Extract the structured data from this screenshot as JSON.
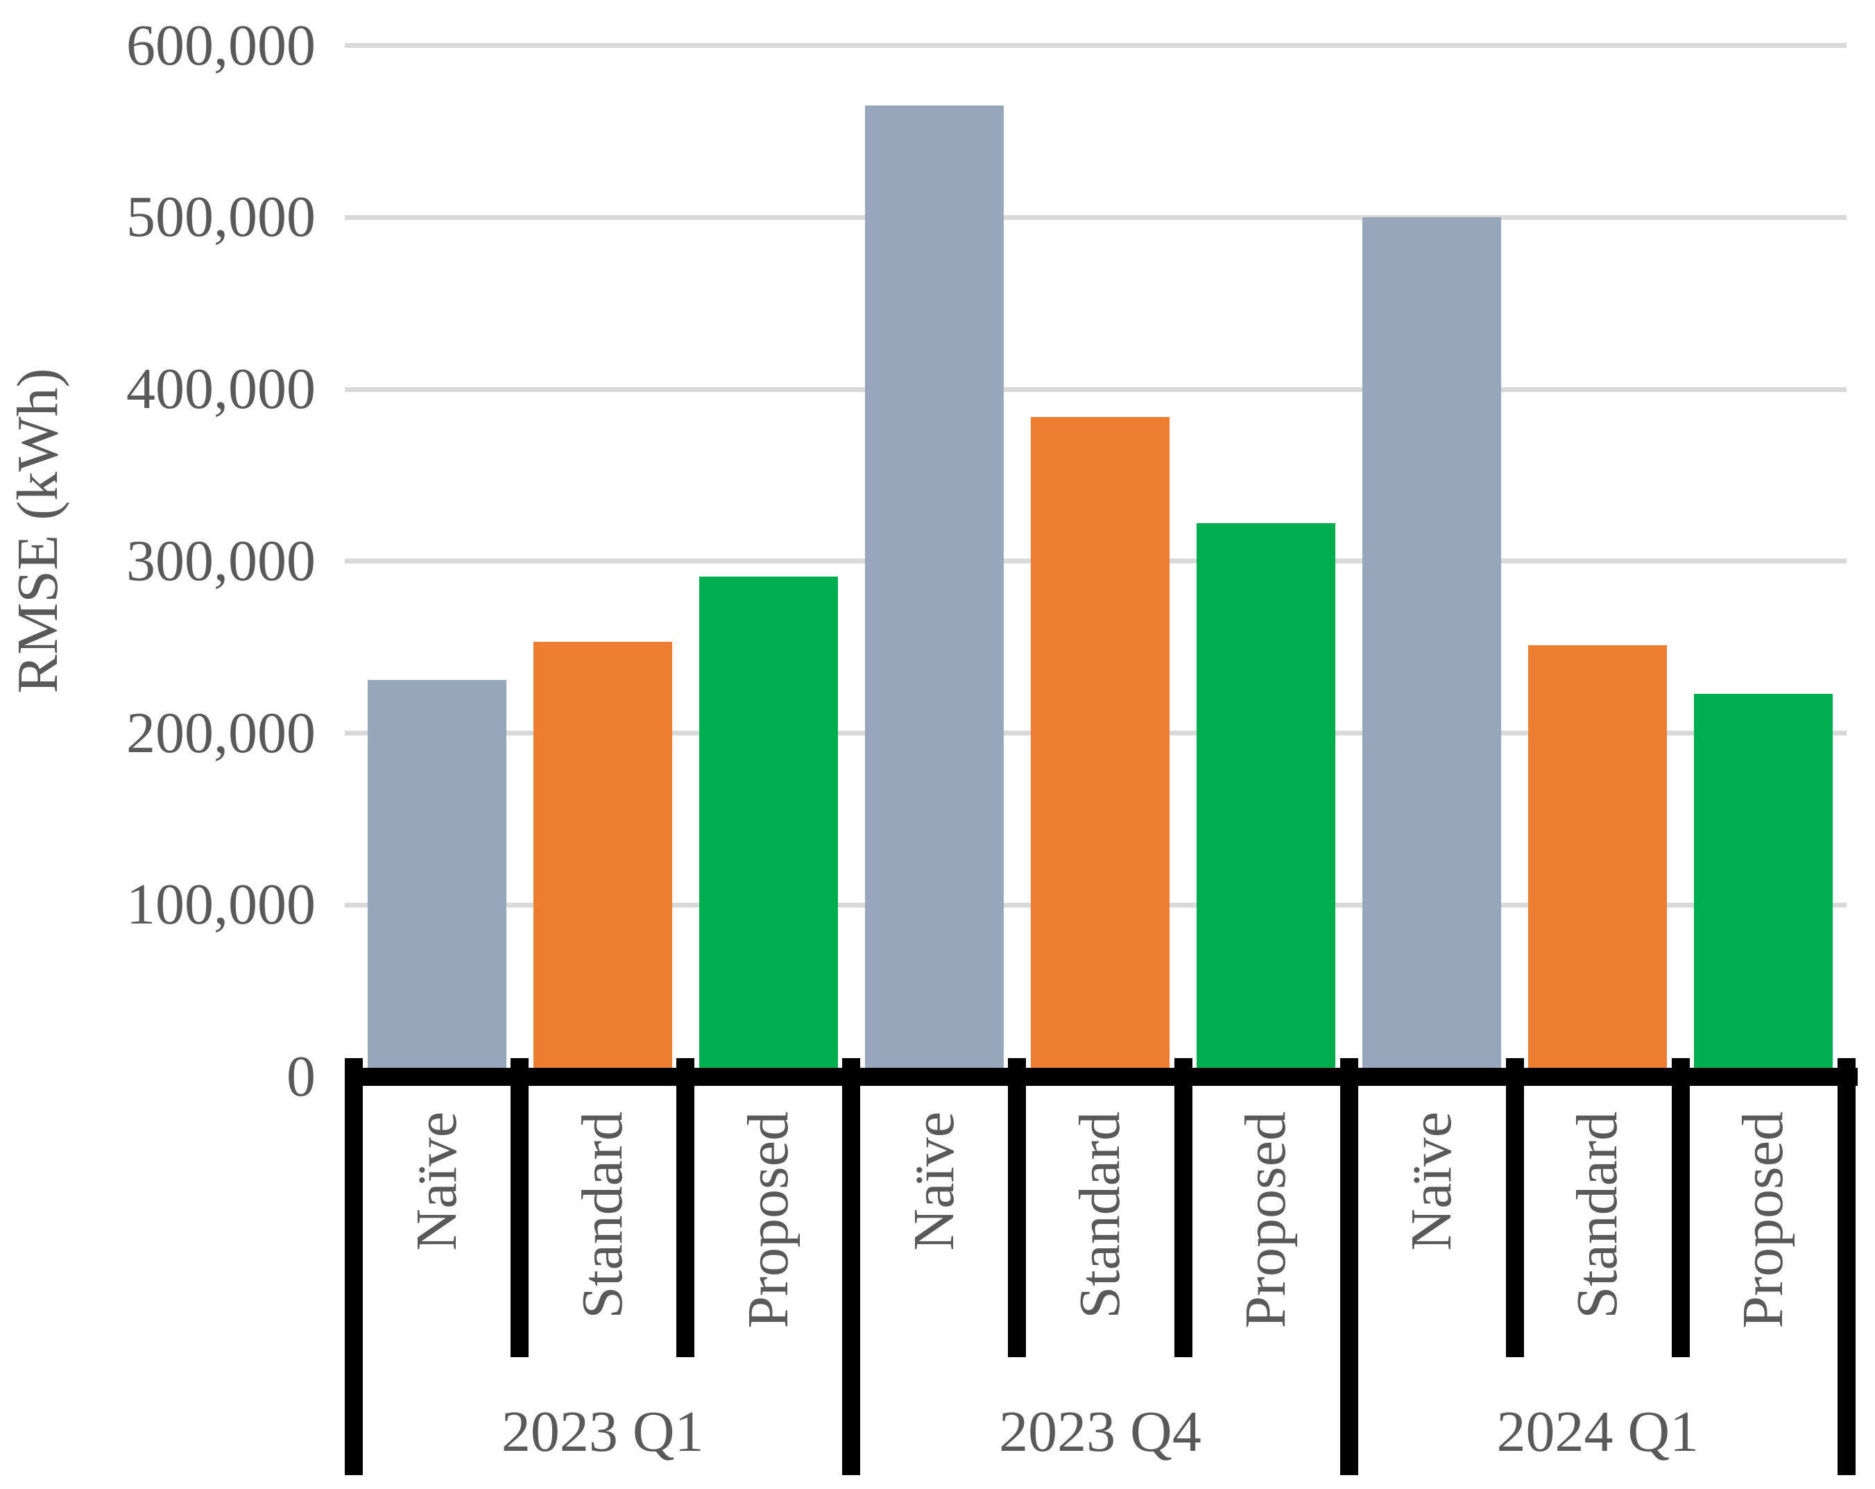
{
  "chart_data": {
    "type": "bar",
    "title": "",
    "xlabel": "",
    "ylabel": "RMSE (kWh)",
    "ylim": [
      0,
      600000
    ],
    "ytick_interval": 100000,
    "ytick_labels": [
      "0",
      "100,000",
      "200,000",
      "300,000",
      "400,000",
      "500,000",
      "600,000"
    ],
    "grid": "horizontal light-gray gridlines every 100,000",
    "legend_position": "none",
    "categories": [
      "2023 Q1",
      "2023 Q4",
      "2024 Q1"
    ],
    "series": [
      {
        "name": "Naïve",
        "values": [
          231000,
          565000,
          500000
        ]
      },
      {
        "name": "Standard",
        "values": [
          253000,
          384000,
          251000
        ]
      },
      {
        "name": "Proposed",
        "values": [
          291000,
          322000,
          223000
        ]
      }
    ],
    "axis_style": "thick black baseline with boxed two-level category labels; method labels rotated 90° reading bottom-to-top"
  },
  "colors": {
    "naive_bar": "#98A6BC",
    "standard_bar": "#ED7D31",
    "proposed_bar": "#00AE50",
    "gridline": "#D9D9D9",
    "axis_line": "#000000",
    "text": "#595959",
    "background": "#FFFFFF"
  }
}
